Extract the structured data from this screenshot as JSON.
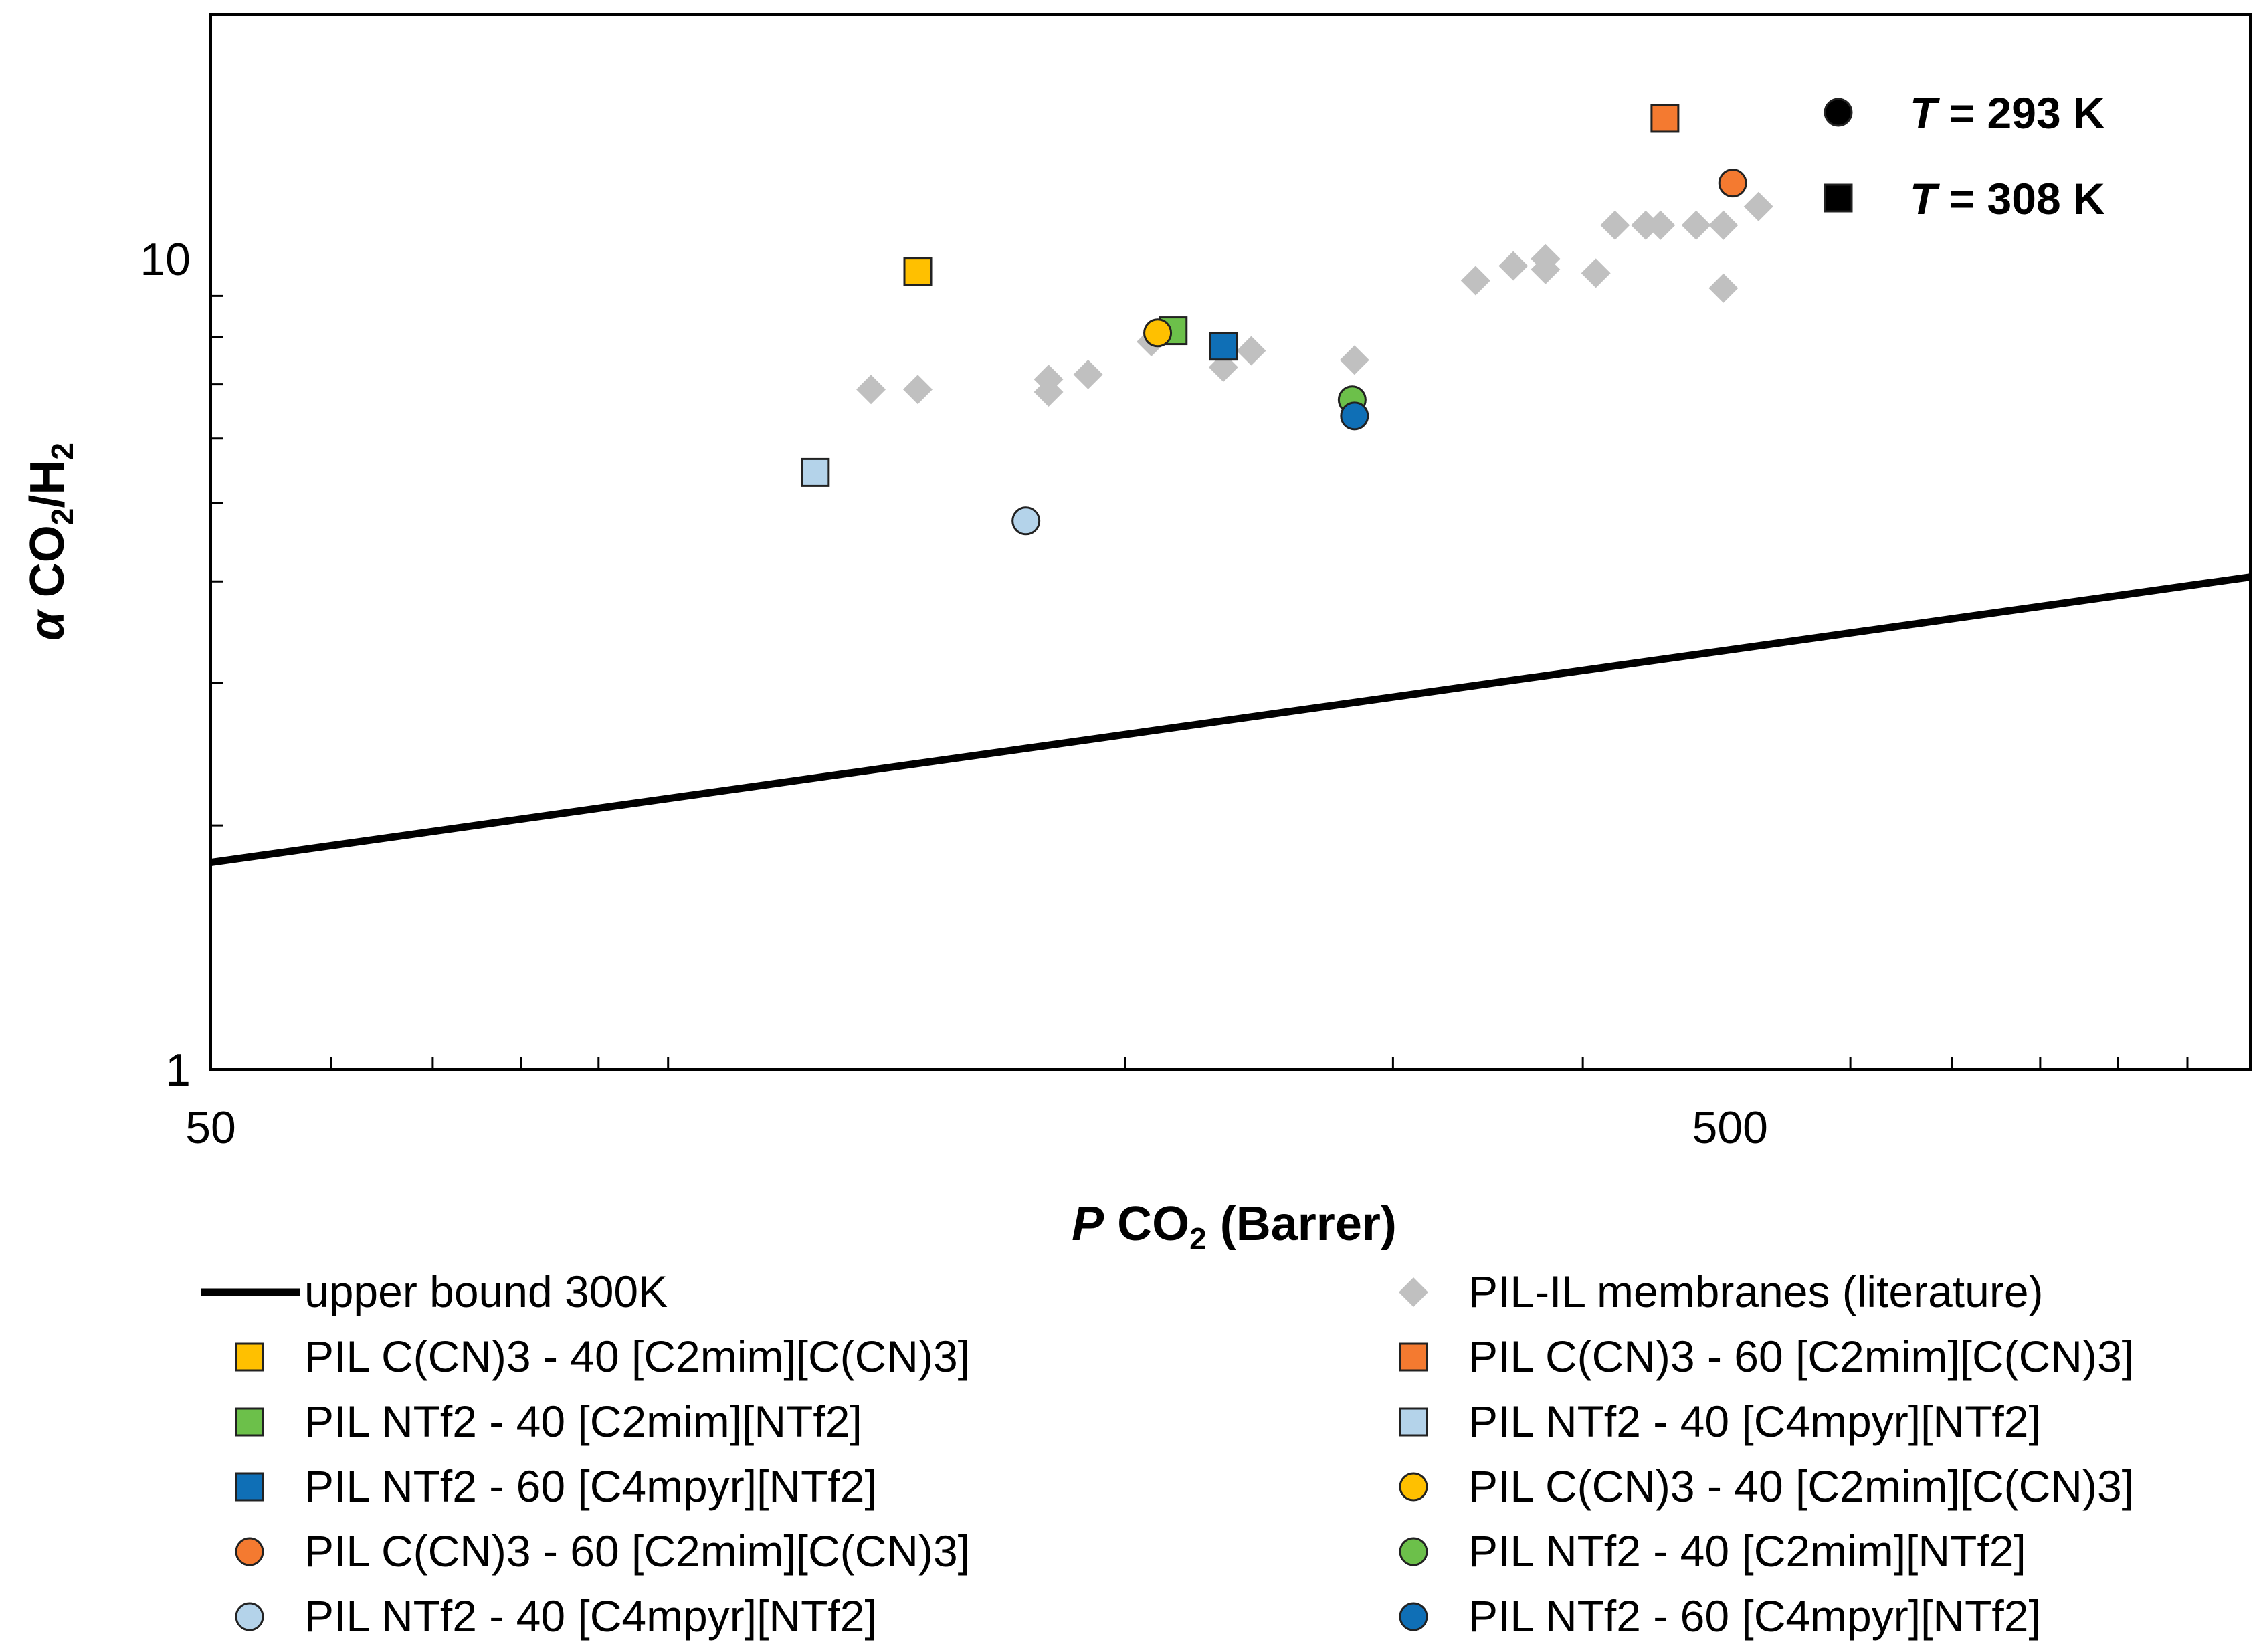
{
  "chart_data": {
    "type": "scatter",
    "x_scale": "log",
    "y_scale": "log",
    "xlim": [
      50,
      1100
    ],
    "ylim": [
      1,
      20
    ],
    "xticks": [
      50,
      500
    ],
    "xtick_labels": [
      "50",
      "500"
    ],
    "yticks": [
      1,
      10
    ],
    "ytick_labels": [
      "1",
      "10"
    ],
    "xlabel": {
      "italic": "P",
      "main": " CO",
      "sub": "2",
      "tail": " (Barrer)"
    },
    "ylabel": {
      "italic": "α",
      "main": " CO",
      "sub": "2",
      "mid": "/H",
      "sub2": "2"
    },
    "temperature_key": [
      {
        "marker": "circle",
        "prefix": "T",
        "label": " = 293 K"
      },
      {
        "marker": "square",
        "prefix": "T",
        "label": " = 308 K"
      }
    ],
    "upper_bound": {
      "name": "upper bound 300K",
      "points": [
        [
          50,
          1.8
        ],
        [
          1100,
          4.05
        ]
      ]
    },
    "literature": {
      "name": "PIL-IL membranes (literature)",
      "color": "#c0c0c0",
      "points": [
        [
          136,
          6.9
        ],
        [
          146,
          6.9
        ],
        [
          178,
          6.85
        ],
        [
          178,
          7.1
        ],
        [
          189,
          7.2
        ],
        [
          208,
          7.9
        ],
        [
          232,
          7.35
        ],
        [
          242,
          7.7
        ],
        [
          283,
          7.5
        ],
        [
          340,
          9.4
        ],
        [
          360,
          9.8
        ],
        [
          378,
          9.7
        ],
        [
          378,
          10.0
        ],
        [
          408,
          9.6
        ],
        [
          420,
          11.0
        ],
        [
          440,
          11.0
        ],
        [
          450,
          11.0
        ],
        [
          475,
          11.0
        ],
        [
          495,
          11.0
        ],
        [
          495,
          9.2
        ],
        [
          522,
          11.6
        ]
      ]
    },
    "series": [
      {
        "name": "PIL C(CN)3 - 40 [C2mim][C(CN)3]",
        "marker": "square",
        "color": "#ffc000",
        "x": 146,
        "y": 9.65
      },
      {
        "name": "PIL C(CN)3 - 60 [C2mim][C(CN)3]",
        "marker": "square",
        "color": "#f47a30",
        "x": 453,
        "y": 14.9
      },
      {
        "name": "PIL NTf2 - 40 [C2mim][NTf2]",
        "marker": "square",
        "color": "#6cc04a",
        "x": 215,
        "y": 8.15
      },
      {
        "name": "PIL NTf2 - 40 [C4mpyr][NTf2]",
        "marker": "square",
        "color": "#b4d3ea",
        "x": 125,
        "y": 5.45
      },
      {
        "name": "PIL NTf2 - 60 [C4mpyr][NTf2]",
        "marker": "square",
        "color": "#0f6fb6",
        "x": 232,
        "y": 7.8
      },
      {
        "name": "PIL C(CN)3 - 40 [C2mim][C(CN)3]",
        "marker": "circle",
        "color": "#ffc000",
        "x": 210,
        "y": 8.1
      },
      {
        "name": "PIL C(CN)3 - 60 [C2mim][C(CN)3]",
        "marker": "circle",
        "color": "#f47a30",
        "x": 502,
        "y": 12.4
      },
      {
        "name": "PIL NTf2 - 40 [C4mpyr][NTf2]",
        "marker": "circle",
        "color": "#b4d3ea",
        "x": 172,
        "y": 4.75
      },
      {
        "name": "PIL NTf2 - 40 [C2mim][NTf2]",
        "marker": "circle",
        "color": "#6cc04a",
        "x": 282,
        "y": 6.7
      },
      {
        "name": "PIL NTf2 - 60 [C4mpyr][NTf2]",
        "marker": "circle",
        "color": "#0f6fb6",
        "x": 283,
        "y": 6.4
      }
    ],
    "legend": {
      "placement": "bottom",
      "left": [
        {
          "kind": "line",
          "label": "upper bound 300K"
        },
        {
          "kind": "series",
          "index": 0
        },
        {
          "kind": "series",
          "index": 2
        },
        {
          "kind": "series",
          "index": 4
        },
        {
          "kind": "series",
          "index": 6
        },
        {
          "kind": "series",
          "index": 7
        }
      ],
      "right": [
        {
          "kind": "literature",
          "label": "PIL-IL membranes (literature)"
        },
        {
          "kind": "series",
          "index": 1
        },
        {
          "kind": "series",
          "index": 3
        },
        {
          "kind": "series",
          "index": 5
        },
        {
          "kind": "series",
          "index": 8
        },
        {
          "kind": "series",
          "index": 9
        }
      ]
    }
  }
}
